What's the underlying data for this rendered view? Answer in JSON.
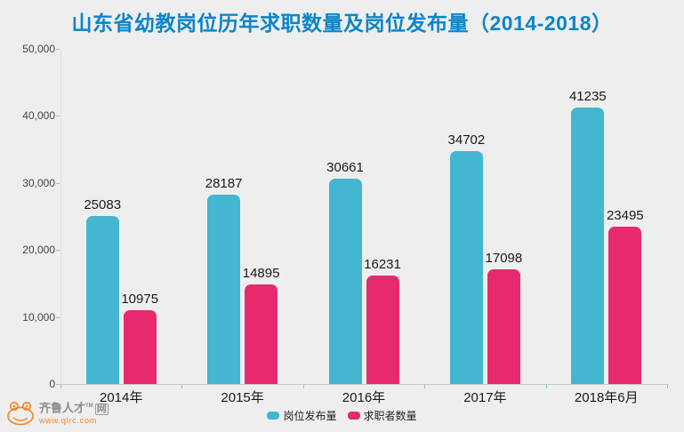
{
  "chart_data": {
    "type": "bar",
    "title": "山东省幼教岗位历年求职数量及岗位发布量（2014-2018）",
    "categories": [
      "2014年",
      "2015年",
      "2016年",
      "2017年",
      "2018年6月"
    ],
    "series": [
      {
        "name": "岗位发布量",
        "color": "#44b6cf",
        "values": [
          25083,
          28187,
          30661,
          34702,
          41235
        ]
      },
      {
        "name": "求职者数量",
        "color": "#e7296d",
        "values": [
          10975,
          14895,
          16231,
          17098,
          23495
        ]
      }
    ],
    "xlabel": "",
    "ylabel": "",
    "ylim": [
      0,
      50000
    ],
    "yticks": [
      0,
      10000,
      20000,
      30000,
      40000,
      50000
    ],
    "ytick_labels": [
      "0",
      "10,000",
      "20,000",
      "30,000",
      "40,000",
      "50,000"
    ],
    "grid": false,
    "legend_position": "bottom-center"
  },
  "colors": {
    "background": "#eeeeee",
    "title": "#0c85c9",
    "bar_teal": "#44b6cf",
    "bar_pink": "#e7296d",
    "axis_text": "#444444",
    "logo_orange": "#f08519"
  },
  "logo": {
    "name": "齐鲁人才",
    "tm": "TM",
    "net": "网",
    "url": "www.qlrc.com"
  }
}
